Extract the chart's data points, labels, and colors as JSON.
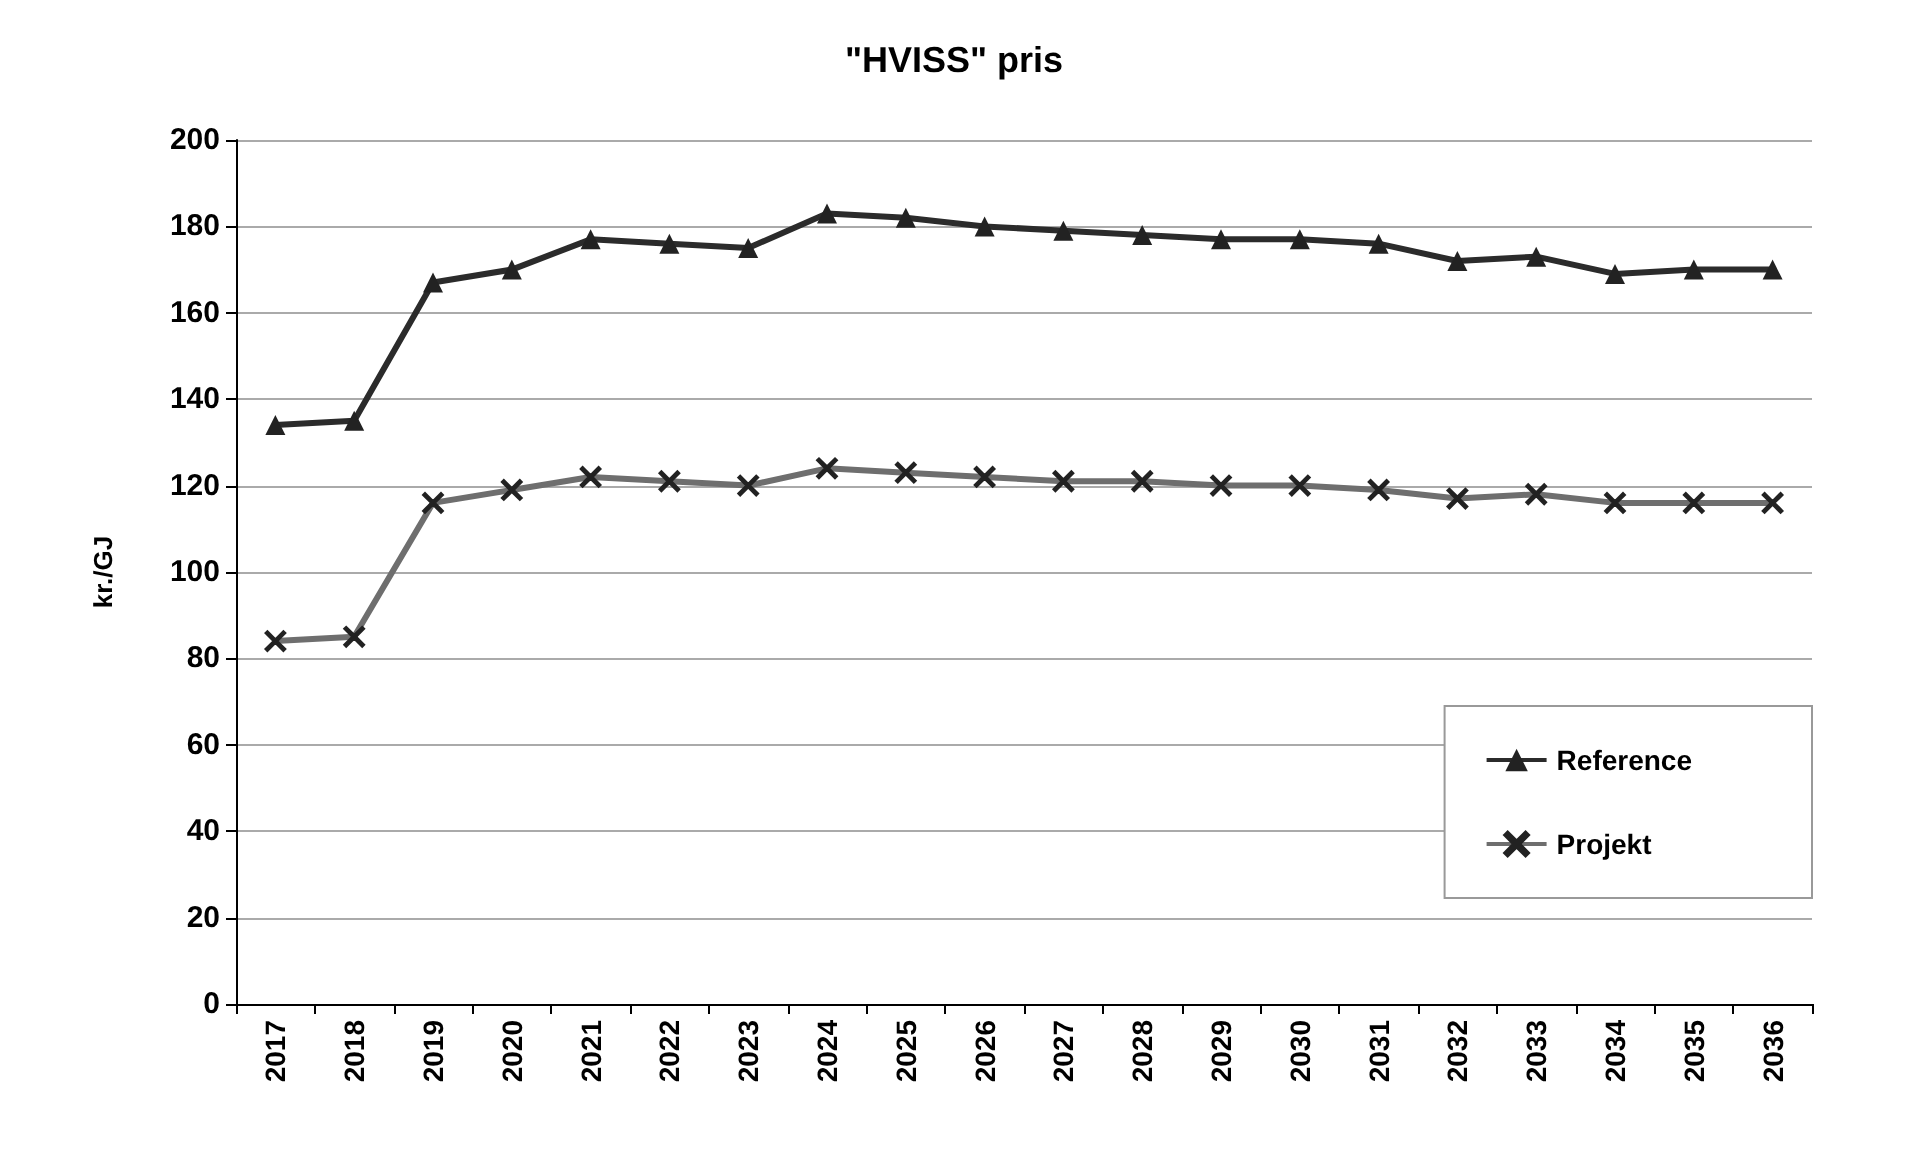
{
  "chart_data": {
    "type": "line",
    "title": "\"HVISS\" pris",
    "ylabel": "kr./GJ",
    "categories": [
      "2017",
      "2018",
      "2019",
      "2020",
      "2021",
      "2022",
      "2023",
      "2024",
      "2025",
      "2026",
      "2027",
      "2028",
      "2029",
      "2030",
      "2031",
      "2032",
      "2033",
      "2034",
      "2035",
      "2036"
    ],
    "series": [
      {
        "name": "Reference",
        "color": "#2b2b2b",
        "marker": "triangle",
        "values": [
          134,
          135,
          167,
          170,
          177,
          176,
          175,
          183,
          182,
          180,
          179,
          178,
          177,
          177,
          176,
          172,
          173,
          169,
          170,
          170
        ]
      },
      {
        "name": "Projekt",
        "color": "#6e6e6e",
        "marker": "cross",
        "values": [
          84,
          85,
          116,
          119,
          122,
          121,
          120,
          124,
          123,
          122,
          121,
          121,
          120,
          120,
          119,
          117,
          118,
          116,
          116,
          116
        ]
      }
    ],
    "ylim": [
      0,
      200
    ],
    "yticks": [
      0,
      20,
      40,
      60,
      80,
      100,
      120,
      140,
      160,
      180,
      200
    ],
    "grid": "y",
    "legend": "right",
    "line_style": "solid"
  }
}
